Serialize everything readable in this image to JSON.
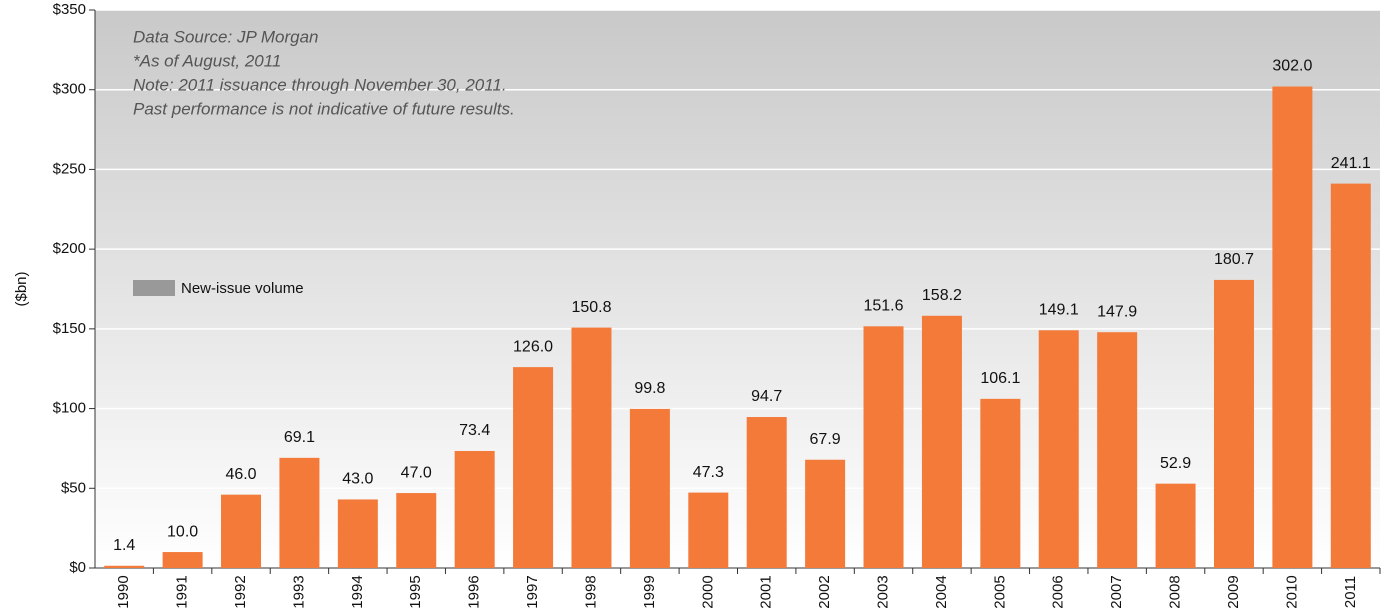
{
  "chart_data": {
    "type": "bar",
    "notes": [
      "Data Source: JP Morgan",
      "*As of August, 2011",
      "Note: 2011 issuance through November 30, 2011.",
      "Past performance is not indicative of future results."
    ],
    "y_label": "($bn)",
    "categories": [
      "1990",
      "1991",
      "1992",
      "1993",
      "1994",
      "1995",
      "1996",
      "1997",
      "1998",
      "1999",
      "2000",
      "2001",
      "2002",
      "2003",
      "2004",
      "2005",
      "2006",
      "2007",
      "2008",
      "2009",
      "2010",
      "2011"
    ],
    "series": [
      {
        "name": "New-issue volume",
        "color": "#f47a3a",
        "values": [
          1.4,
          10.0,
          46.0,
          69.1,
          43.0,
          47.0,
          73.4,
          126.0,
          150.8,
          99.8,
          47.3,
          94.7,
          67.9,
          151.6,
          158.2,
          106.1,
          149.1,
          147.9,
          52.9,
          180.7,
          302.0,
          241.1
        ],
        "value_labels": [
          "1.4",
          "10.0",
          "46.0",
          "69.1",
          "43.0",
          "47.0",
          "73.4",
          "126.0",
          "150.8",
          "99.8",
          "47.3",
          "94.7",
          "67.9",
          "151.6",
          "158.2",
          "106.1",
          "149.1",
          "147.9",
          "52.9",
          "180.7",
          "302.0",
          "241.1"
        ]
      }
    ],
    "legend_color": "#999999",
    "ylim": [
      0,
      350
    ],
    "yticks": [
      {
        "value": 0,
        "label": "$0"
      },
      {
        "value": 50,
        "label": "$50"
      },
      {
        "value": 100,
        "label": "$100"
      },
      {
        "value": 150,
        "label": "$150"
      },
      {
        "value": 200,
        "label": "$200"
      },
      {
        "value": 250,
        "label": "$250"
      },
      {
        "value": 300,
        "label": "$300"
      },
      {
        "value": 350,
        "label": "$350"
      }
    ],
    "grid": true
  }
}
